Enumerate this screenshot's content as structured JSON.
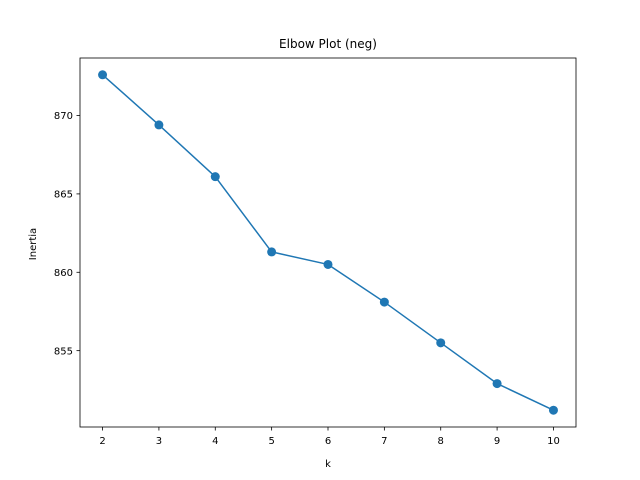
{
  "chart_data": {
    "type": "line",
    "title": "Elbow Plot (neg)",
    "xlabel": "k",
    "ylabel": "Inertia",
    "x": [
      2,
      3,
      4,
      5,
      6,
      7,
      8,
      9,
      10
    ],
    "y": [
      872.6,
      869.4,
      866.1,
      861.3,
      860.5,
      858.1,
      855.5,
      852.9,
      851.2
    ],
    "xlim": [
      1.6,
      10.4
    ],
    "ylim": [
      850.13,
      873.67
    ],
    "xticks": [
      2,
      3,
      4,
      5,
      6,
      7,
      8,
      9,
      10
    ],
    "yticks": [
      855,
      860,
      865,
      870
    ],
    "marker": "circle",
    "color": "#1f77b4",
    "grid": false,
    "legend": false
  }
}
